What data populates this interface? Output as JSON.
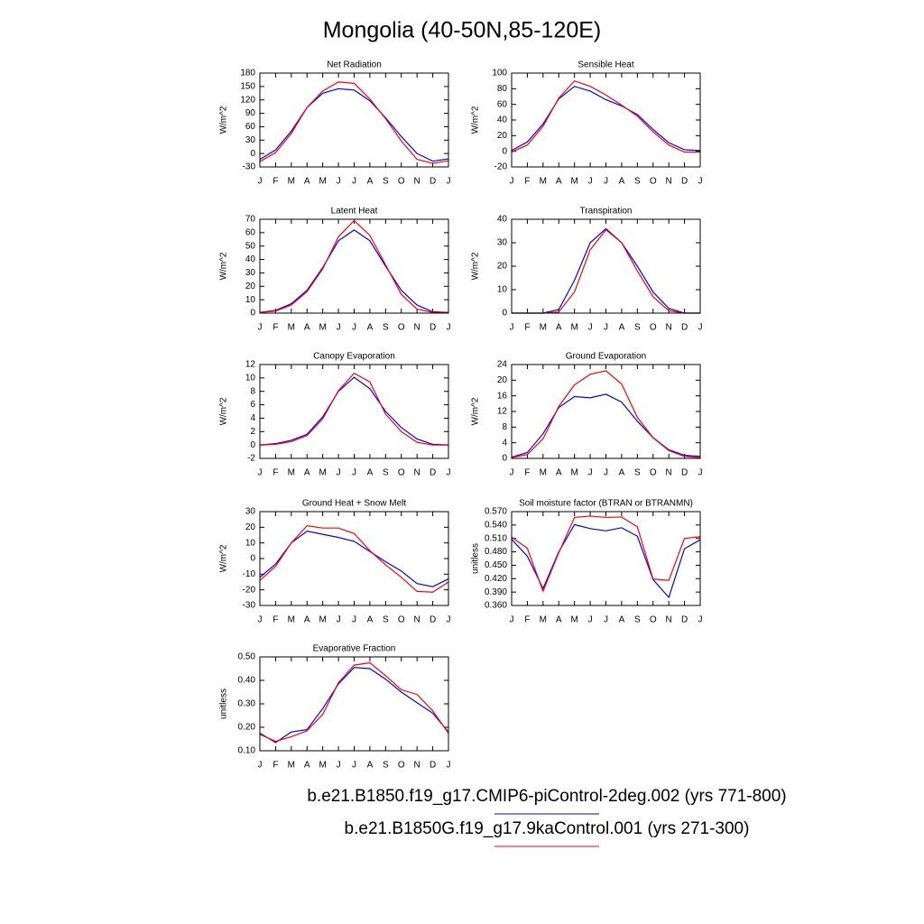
{
  "title": "Mongolia (40-50N,85-120E)",
  "legend": [
    {
      "name": "b.e21.B1850.f19_g17.CMIP6-piControl-2deg.002 (yrs 771-800)",
      "color": "#0000ff"
    },
    {
      "name": "b.e21.B1850G.f19_g17.9kaControl.001 (yrs 271-300)",
      "color": "#ff0000"
    }
  ],
  "chart_data": [
    {
      "type": "line",
      "title": "Net Radiation",
      "ylabel": "W/m^2",
      "categories": [
        "J",
        "F",
        "M",
        "A",
        "M",
        "J",
        "J",
        "A",
        "S",
        "O",
        "N",
        "D",
        "J"
      ],
      "ylim": [
        -30,
        180
      ],
      "yticks": [
        -30,
        0,
        30,
        60,
        90,
        120,
        150,
        180
      ],
      "series": [
        {
          "color": "#0000ff",
          "values": [
            -13,
            8,
            50,
            103,
            135,
            145,
            142,
            118,
            80,
            38,
            0,
            -17,
            -12
          ]
        },
        {
          "color": "#ff0000",
          "values": [
            -18,
            2,
            45,
            103,
            140,
            160,
            157,
            122,
            78,
            28,
            -13,
            -22,
            -16
          ]
        }
      ]
    },
    {
      "type": "line",
      "title": "Sensible Heat",
      "ylabel": "W/m^2",
      "categories": [
        "J",
        "F",
        "M",
        "A",
        "M",
        "J",
        "J",
        "A",
        "S",
        "O",
        "N",
        "D",
        "J"
      ],
      "ylim": [
        -20,
        100
      ],
      "yticks": [
        -20,
        0,
        20,
        40,
        60,
        80,
        100
      ],
      "series": [
        {
          "color": "#0000ff",
          "values": [
            1,
            12,
            35,
            67,
            83,
            77,
            66,
            58,
            47,
            28,
            11,
            2,
            1
          ]
        },
        {
          "color": "#ff0000",
          "values": [
            -1,
            8,
            32,
            68,
            90,
            83,
            72,
            59,
            45,
            25,
            8,
            -1,
            -1
          ]
        }
      ]
    },
    {
      "type": "line",
      "title": "Latent Heat",
      "ylabel": "W/m^2",
      "categories": [
        "J",
        "F",
        "M",
        "A",
        "M",
        "J",
        "J",
        "A",
        "S",
        "O",
        "N",
        "D",
        "J"
      ],
      "ylim": [
        0,
        70
      ],
      "yticks": [
        0,
        10,
        20,
        30,
        40,
        50,
        60,
        70
      ],
      "series": [
        {
          "color": "#0000ff",
          "values": [
            0.5,
            2,
            7,
            17,
            34,
            54,
            62,
            54,
            35,
            17,
            6,
            1,
            0.5
          ]
        },
        {
          "color": "#ff0000",
          "values": [
            0.5,
            1.5,
            6,
            16,
            33,
            57,
            69,
            58,
            36,
            14,
            3,
            0.5,
            0.5
          ]
        }
      ]
    },
    {
      "type": "line",
      "title": "Transpiration",
      "ylabel": "W/m^2",
      "categories": [
        "J",
        "F",
        "M",
        "A",
        "M",
        "J",
        "J",
        "A",
        "S",
        "O",
        "N",
        "D",
        "J"
      ],
      "ylim": [
        0,
        40
      ],
      "yticks": [
        0,
        10,
        20,
        30,
        40
      ],
      "series": [
        {
          "color": "#0000ff",
          "values": [
            0,
            0,
            0,
            1.5,
            14,
            30,
            36,
            30,
            20,
            9,
            2,
            0,
            0
          ]
        },
        {
          "color": "#ff0000",
          "values": [
            0,
            0,
            0,
            0.5,
            9,
            27,
            35.5,
            30,
            18,
            7,
            1,
            0,
            0
          ]
        }
      ]
    },
    {
      "type": "line",
      "title": "Canopy Evaporation",
      "ylabel": "W/m^2",
      "categories": [
        "J",
        "F",
        "M",
        "A",
        "M",
        "J",
        "J",
        "A",
        "S",
        "O",
        "N",
        "D",
        "J"
      ],
      "ylim": [
        -2,
        12
      ],
      "yticks": [
        -2,
        0,
        2,
        4,
        6,
        8,
        10,
        12
      ],
      "series": [
        {
          "color": "#0000ff",
          "values": [
            0,
            0.2,
            0.7,
            1.6,
            4.2,
            8,
            10.1,
            8.4,
            5,
            2.6,
            0.9,
            0.1,
            0
          ]
        },
        {
          "color": "#ff0000",
          "values": [
            0,
            0.1,
            0.5,
            1.4,
            3.9,
            8.1,
            10.7,
            9.4,
            4.6,
            2,
            0.4,
            0,
            0
          ]
        }
      ]
    },
    {
      "type": "line",
      "title": "Ground Evaporation",
      "ylabel": "W/m^2",
      "categories": [
        "J",
        "F",
        "M",
        "A",
        "M",
        "J",
        "J",
        "A",
        "S",
        "O",
        "N",
        "D",
        "J"
      ],
      "ylim": [
        0,
        24
      ],
      "yticks": [
        0,
        4,
        8,
        12,
        16,
        20,
        24
      ],
      "series": [
        {
          "color": "#0000ff",
          "values": [
            0.3,
            1.5,
            6.3,
            13,
            15.8,
            15.5,
            16.4,
            14.4,
            9.5,
            5.3,
            2.2,
            0.8,
            0.5
          ]
        },
        {
          "color": "#ff0000",
          "values": [
            0.2,
            1,
            5,
            13.3,
            18.8,
            21.5,
            22.4,
            19,
            10.5,
            5.3,
            2,
            0.5,
            0.2
          ]
        }
      ]
    },
    {
      "type": "line",
      "title": "Ground Heat + Snow Melt",
      "ylabel": "W/m^2",
      "categories": [
        "J",
        "F",
        "M",
        "A",
        "M",
        "J",
        "J",
        "A",
        "S",
        "O",
        "N",
        "D",
        "J"
      ],
      "ylim": [
        -30,
        30
      ],
      "yticks": [
        -30,
        -20,
        -10,
        0,
        10,
        20,
        30
      ],
      "series": [
        {
          "color": "#0000ff",
          "values": [
            -12,
            -3.5,
            10,
            17.5,
            15.5,
            13.5,
            11,
            4.5,
            -2,
            -8,
            -16,
            -18,
            -13
          ]
        },
        {
          "color": "#ff0000",
          "values": [
            -14,
            -5,
            10,
            21,
            19.5,
            19.5,
            16,
            5,
            -4,
            -12,
            -21,
            -21.5,
            -15
          ]
        }
      ]
    },
    {
      "type": "line",
      "title": "Soil moisture factor (BTRAN or BTRANMN)",
      "ylabel": "unitless",
      "categories": [
        "J",
        "F",
        "M",
        "A",
        "M",
        "J",
        "J",
        "A",
        "S",
        "O",
        "N",
        "D",
        "J"
      ],
      "ylim": [
        0.36,
        0.57
      ],
      "yticks": [
        {
          "value": 0.36,
          "label": "0.360"
        },
        {
          "value": 0.39,
          "label": "0.390"
        },
        {
          "value": 0.42,
          "label": "0.420"
        },
        {
          "value": 0.45,
          "label": "0.450"
        },
        {
          "value": 0.48,
          "label": "0.480"
        },
        {
          "value": 0.51,
          "label": "0.510"
        },
        {
          "value": 0.54,
          "label": "0.540"
        },
        {
          "value": 0.57,
          "label": "0.570"
        }
      ],
      "series": [
        {
          "color": "#0000ff",
          "values": [
            0.508,
            0.47,
            0.398,
            0.48,
            0.541,
            0.532,
            0.527,
            0.534,
            0.515,
            0.418,
            0.378,
            0.487,
            0.507
          ]
        },
        {
          "color": "#ff0000",
          "values": [
            0.513,
            0.488,
            0.392,
            0.478,
            0.557,
            0.56,
            0.557,
            0.558,
            0.536,
            0.419,
            0.416,
            0.51,
            0.514
          ]
        }
      ]
    },
    {
      "type": "line",
      "title": "Evaporative Fraction",
      "ylabel": "unitless",
      "categories": [
        "J",
        "F",
        "M",
        "A",
        "M",
        "J",
        "J",
        "A",
        "S",
        "O",
        "N",
        "D",
        "J"
      ],
      "ylim": [
        0.1,
        0.5
      ],
      "yticks": [
        {
          "value": 0.1,
          "label": "0.10"
        },
        {
          "value": 0.2,
          "label": "0.20"
        },
        {
          "value": 0.3,
          "label": "0.30"
        },
        {
          "value": 0.4,
          "label": "0.40"
        },
        {
          "value": 0.5,
          "label": "0.50"
        }
      ],
      "series": [
        {
          "color": "#0000ff",
          "values": [
            0.175,
            0.135,
            0.18,
            0.19,
            0.28,
            0.385,
            0.455,
            0.45,
            0.405,
            0.35,
            0.305,
            0.26,
            0.18
          ]
        },
        {
          "color": "#ff0000",
          "values": [
            0.17,
            0.14,
            0.16,
            0.185,
            0.255,
            0.39,
            0.465,
            0.475,
            0.42,
            0.36,
            0.34,
            0.27,
            0.175
          ]
        }
      ]
    }
  ]
}
